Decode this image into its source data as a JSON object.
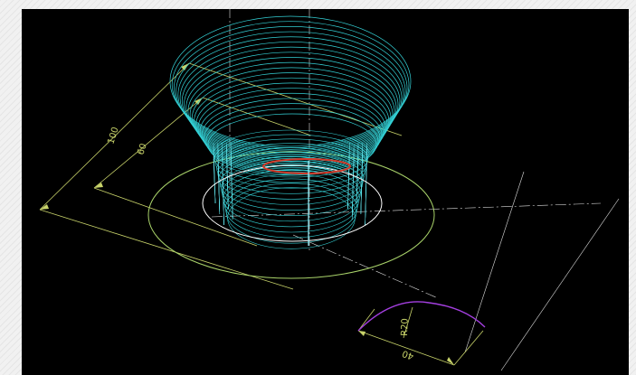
{
  "drawing": {
    "dimensions": {
      "overall": "100",
      "inner": "60",
      "base_width": "40",
      "radius": "R20"
    }
  },
  "colors": {
    "background": "#000000",
    "wireframe": "#34d1d6",
    "dimension": "#c8d36a",
    "construction": "#dedede",
    "profile": "#a43fe0",
    "red_core": "#d23a2a"
  }
}
